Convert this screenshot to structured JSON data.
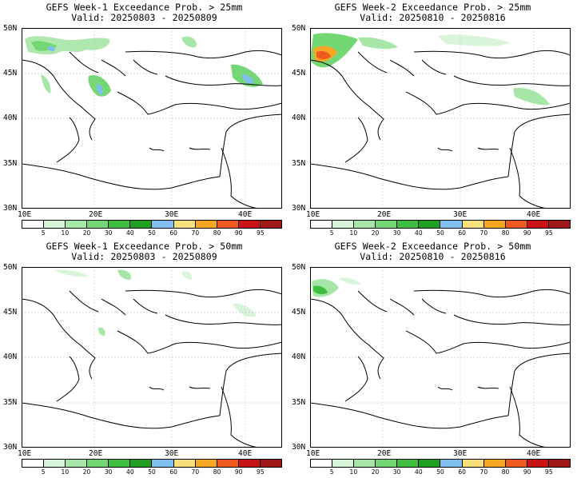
{
  "panels": [
    {
      "line1": "GEFS Week-1 Exceedance Prob. > 25mm",
      "line2": "Valid: 20250803 - 20250809"
    },
    {
      "line1": "GEFS Week-2 Exceedance Prob. > 25mm",
      "line2": "Valid: 20250810 - 20250816"
    },
    {
      "line1": "GEFS Week-1 Exceedance Prob. > 50mm",
      "line2": "Valid: 20250803 - 20250809"
    },
    {
      "line1": "GEFS Week-2 Exceedance Prob. > 50mm",
      "line2": "Valid: 20250810 - 20250816"
    }
  ],
  "axes": {
    "lon_labels": [
      "10E",
      "20E",
      "30E",
      "40E"
    ],
    "lat_labels": [
      "50N",
      "45N",
      "40N",
      "35N",
      "30N"
    ]
  },
  "colorbar": {
    "labels": [
      "5",
      "10",
      "20",
      "30",
      "40",
      "50",
      "60",
      "70",
      "80",
      "90",
      "95"
    ],
    "colors": [
      "#ffffff",
      "#d9f5d9",
      "#a6e6a6",
      "#73d873",
      "#3fbf3f",
      "#1f9f1f",
      "#7fbfef",
      "#f7e07a",
      "#f5a623",
      "#f05a1e",
      "#c81414",
      "#a01818"
    ]
  },
  "map": {
    "land_fill": "#ffffff",
    "coast_color": "#000000",
    "grid_style": "dotted"
  }
}
